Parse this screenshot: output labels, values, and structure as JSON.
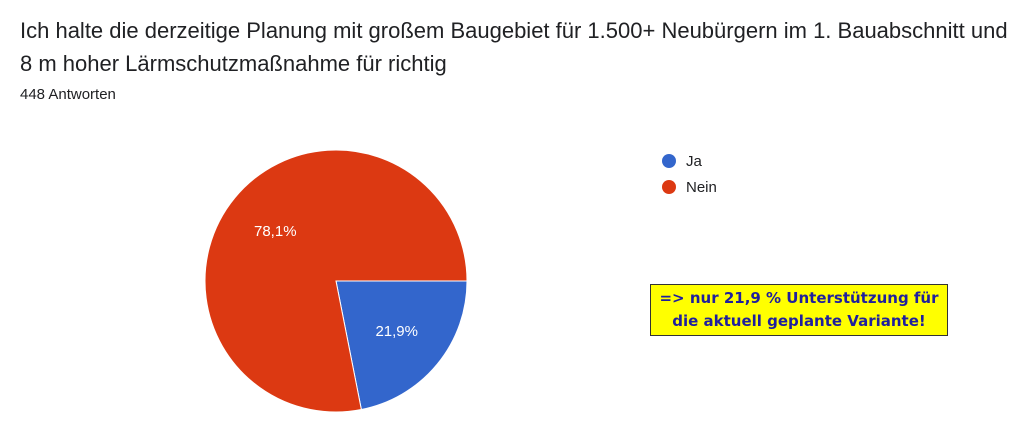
{
  "question": {
    "title": "Ich halte die derzeitige Planung mit großem Baugebiet für 1.500+ Neubürgern im 1. Bauabschnitt und 8 m hoher Lärmschutzmaßnahme für richtig",
    "responses": "448 Antworten"
  },
  "chart_data": {
    "type": "pie",
    "categories": [
      "Ja",
      "Nein"
    ],
    "values": [
      21.9,
      78.1
    ],
    "data_labels": [
      "21,9%",
      "78,1%"
    ],
    "colors": [
      "#3366cc",
      "#dc3912"
    ],
    "legend_position": "right"
  },
  "annotation": {
    "line1": "=> nur 21,9 % Unterstützung für",
    "line2": "die aktuell geplante Variante!"
  }
}
